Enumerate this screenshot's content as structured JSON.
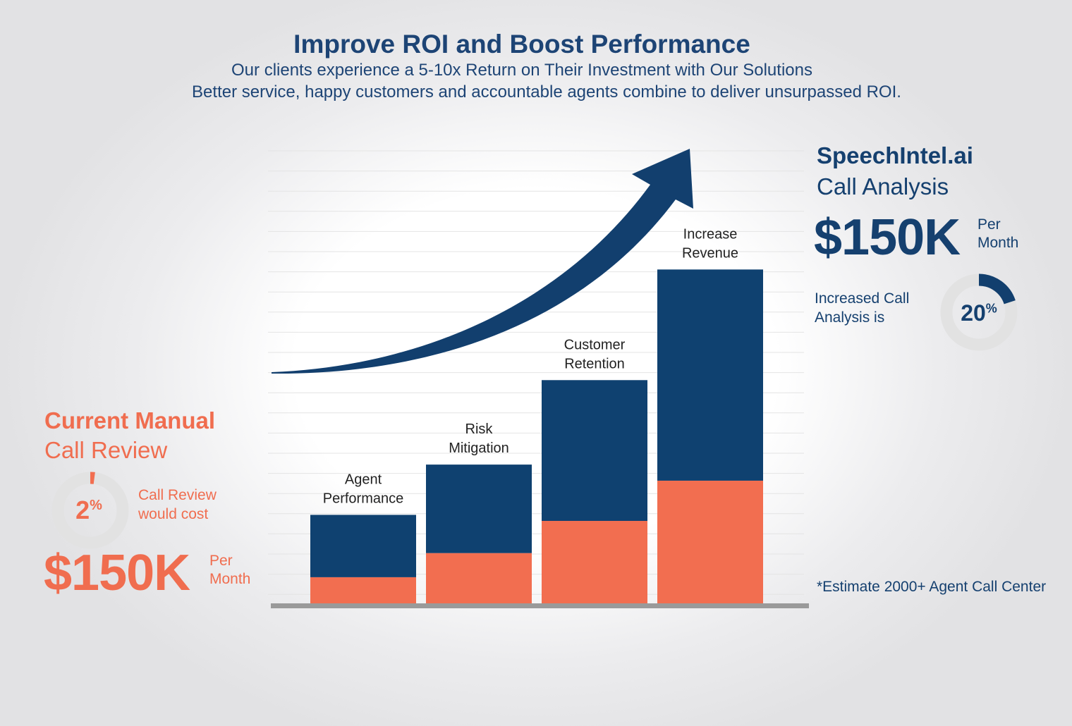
{
  "header": {
    "title": "Improve ROI and Boost Performance",
    "subtitle1": "Our clients experience a 5-10x Return on Their Investment with Our Solutions",
    "subtitle2": "Better service, happy customers and accountable agents combine to deliver unsurpassed ROI."
  },
  "right_panel": {
    "brand": "SpeechIntel.ai",
    "subtitle": "Call Analysis",
    "amount": "$150K",
    "per_line1": "Per",
    "per_line2": "Month",
    "note_line1": "Increased Call",
    "note_line2": "Analysis is",
    "percent_value": "20",
    "percent_symbol": "%",
    "percent": 20,
    "footnote": "*Estimate 2000+ Agent Call Center"
  },
  "left_panel": {
    "title": "Current Manual",
    "subtitle": "Call Review",
    "percent_value": "2",
    "percent_symbol": "%",
    "percent": 2,
    "note_line1": "Call Review",
    "note_line2": "would cost",
    "amount": "$150K",
    "per_line1": "Per",
    "per_line2": "Month"
  },
  "colors": {
    "navy": "#0f4170",
    "orange": "#f26e50",
    "gray_ring": "#e2e2e2",
    "baseline": "#9a9a9a"
  },
  "chart_data": {
    "type": "bar",
    "stacked": true,
    "categories": [
      [
        "Agent",
        "Performance"
      ],
      [
        "Risk",
        "Mitigation"
      ],
      [
        "Customer",
        "Retention"
      ],
      [
        "Increase",
        "Revenue"
      ]
    ],
    "series": [
      {
        "values": [
          13,
          25,
          41,
          61
        ],
        "color": "#f26e50"
      },
      {
        "values": [
          31,
          44,
          70,
          105
        ],
        "color": "#0f4170"
      }
    ],
    "ylim": [
      0,
      225
    ],
    "grid": true,
    "trend_arrow": true
  }
}
